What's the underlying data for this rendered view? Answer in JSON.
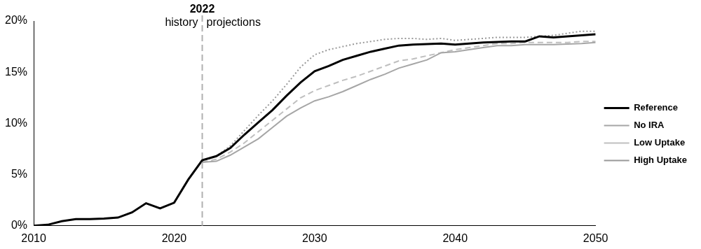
{
  "chart_data": {
    "type": "line",
    "x": [
      2010,
      2011,
      2012,
      2013,
      2014,
      2015,
      2016,
      2017,
      2018,
      2019,
      2020,
      2021,
      2022,
      2023,
      2024,
      2025,
      2026,
      2027,
      2028,
      2029,
      2030,
      2031,
      2032,
      2033,
      2034,
      2035,
      2036,
      2037,
      2038,
      2039,
      2040,
      2041,
      2042,
      2043,
      2044,
      2045,
      2046,
      2047,
      2048,
      2049,
      2050
    ],
    "series": [
      {
        "name": "No IRA",
        "color": "#a6a6a6",
        "line_style": "solid",
        "values": [
          null,
          null,
          null,
          null,
          null,
          null,
          null,
          null,
          null,
          null,
          null,
          null,
          6.2,
          6.3,
          6.9,
          7.7,
          8.5,
          9.6,
          10.7,
          11.5,
          12.2,
          12.6,
          13.1,
          13.7,
          14.3,
          14.8,
          15.4,
          15.8,
          16.2,
          16.9,
          17.0,
          17.2,
          17.4,
          17.6,
          17.6,
          17.7,
          17.7,
          17.7,
          17.75,
          17.8,
          17.9
        ]
      },
      {
        "name": "Low Uptake",
        "color": "#bfbfbf",
        "line_style": "dashed",
        "values": [
          null,
          null,
          null,
          null,
          null,
          null,
          null,
          null,
          null,
          null,
          null,
          null,
          6.2,
          6.5,
          7.2,
          8.1,
          9.2,
          10.3,
          11.4,
          12.5,
          13.2,
          13.7,
          14.2,
          14.6,
          15.1,
          15.6,
          16.1,
          16.3,
          16.6,
          16.9,
          17.2,
          17.4,
          17.6,
          17.8,
          17.8,
          17.9,
          17.9,
          17.9,
          17.9,
          18.0,
          18.0
        ]
      },
      {
        "name": "High Uptake",
        "color": "#999999",
        "line_style": "dotted",
        "values": [
          null,
          null,
          null,
          null,
          null,
          null,
          null,
          null,
          null,
          null,
          null,
          null,
          6.3,
          6.8,
          7.8,
          9.3,
          10.8,
          12.2,
          13.8,
          15.5,
          16.7,
          17.2,
          17.5,
          17.8,
          18.0,
          18.2,
          18.3,
          18.3,
          18.2,
          18.3,
          18.1,
          18.2,
          18.3,
          18.4,
          18.4,
          18.4,
          18.5,
          18.6,
          18.8,
          19.0,
          19.0
        ]
      },
      {
        "name": "Reference",
        "color": "#000000",
        "line_style": "solid",
        "values": [
          0,
          0.1,
          0.45,
          0.65,
          0.65,
          0.7,
          0.8,
          1.3,
          2.2,
          1.7,
          2.25,
          4.5,
          6.4,
          6.8,
          7.6,
          8.9,
          10.1,
          11.3,
          12.7,
          14.0,
          15.1,
          15.6,
          16.2,
          16.6,
          17.0,
          17.3,
          17.6,
          17.7,
          17.75,
          17.8,
          17.7,
          17.8,
          17.9,
          17.95,
          18.0,
          18.0,
          18.5,
          18.4,
          18.5,
          18.6,
          18.7
        ]
      }
    ],
    "xlim": [
      2010,
      2050
    ],
    "xticks": [
      2010,
      2020,
      2030,
      2040,
      2050
    ],
    "ylim": [
      0,
      20
    ],
    "yticks": [
      {
        "value": 0,
        "label": "0%"
      },
      {
        "value": 5,
        "label": "5%"
      },
      {
        "value": 10,
        "label": "10%"
      },
      {
        "value": 15,
        "label": "15%"
      },
      {
        "value": 20,
        "label": "20%"
      }
    ],
    "vline": {
      "x": 2022,
      "label": "2022",
      "left_text": "history",
      "right_text": "projections"
    },
    "grid": false,
    "legend": "right"
  }
}
